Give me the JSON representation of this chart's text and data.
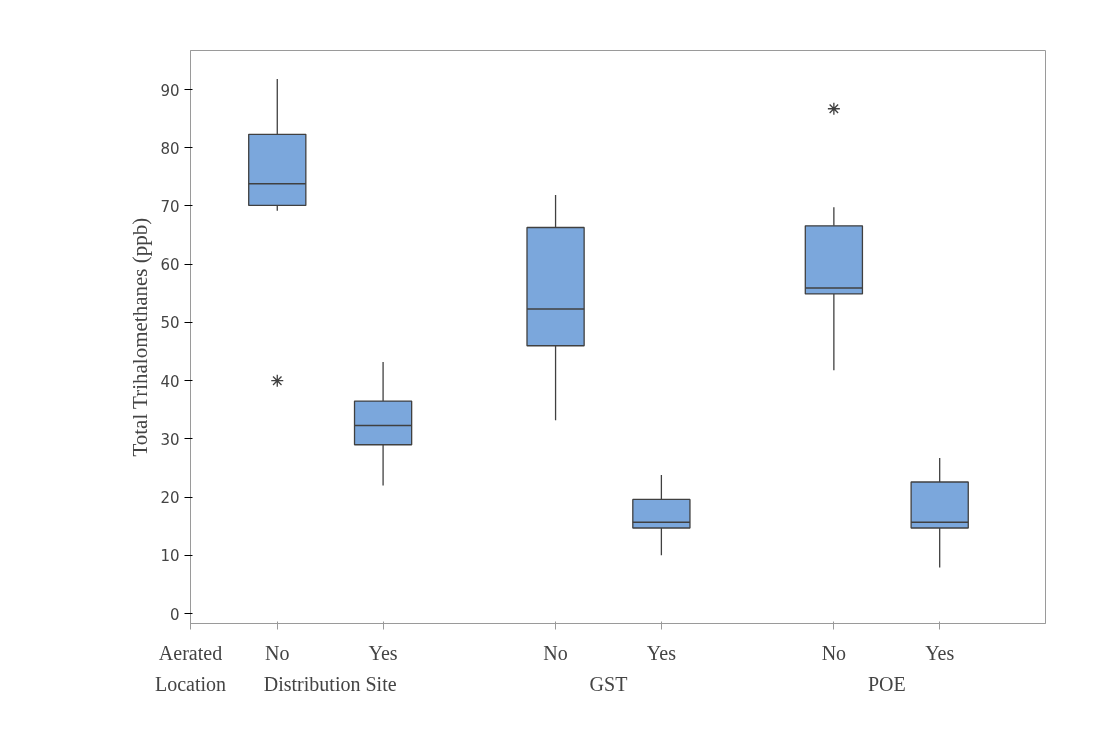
{
  "chart_data": {
    "type": "box",
    "ylabel": "Total Trihalomethanes (ppb)",
    "categories": [
      "No",
      "Yes",
      "No",
      "Yes",
      "No",
      "Yes"
    ],
    "annotations": [
      "Aerated",
      "Location",
      "Distribution Site",
      "GST",
      "POE"
    ],
    "color": "#7ba7dc",
    "boxes": [
      {
        "low": 69.2,
        "q1": 70.1,
        "median": 73.8,
        "q3": 82.3,
        "high": 91.8,
        "outliers": [
          40.0
        ]
      },
      {
        "low": 22.0,
        "q1": 29.0,
        "median": 32.3,
        "q3": 36.5,
        "high": 43.2
      },
      {
        "low": 33.2,
        "q1": 46.0,
        "median": 52.3,
        "q3": 66.3,
        "high": 71.9
      },
      {
        "low": 10.0,
        "q1": 14.7,
        "median": 15.7,
        "q3": 19.6,
        "high": 23.8
      },
      {
        "low": 41.8,
        "q1": 54.9,
        "median": 55.9,
        "q3": 66.6,
        "high": 69.8,
        "outliers": [
          86.7
        ]
      },
      {
        "low": 7.9,
        "q1": 14.7,
        "median": 15.7,
        "q3": 22.6,
        "high": 26.7
      }
    ],
    "ylim": [
      -1.7,
      96.7
    ],
    "yticks": [
      0,
      10,
      20,
      30,
      40,
      50,
      60,
      70,
      80,
      90
    ],
    "grid": false
  }
}
